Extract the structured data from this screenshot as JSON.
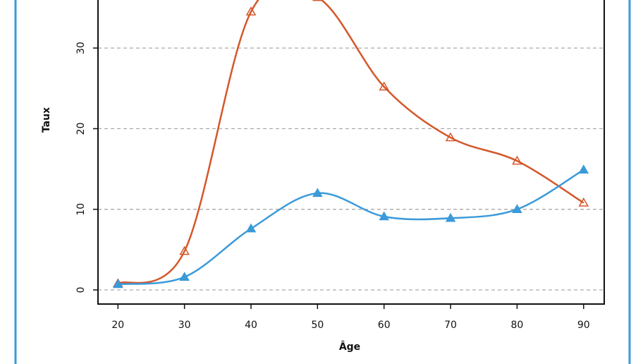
{
  "chart_data": {
    "type": "line",
    "x_label": "Âge",
    "y_label": "Taux",
    "x": [
      20,
      30,
      40,
      50,
      60,
      70,
      80,
      90
    ],
    "series": [
      {
        "color": "#d4572a",
        "marker": "hollow-triangle",
        "values": [
          0.8,
          4.8,
          34.5,
          36.3,
          25.2,
          18.9,
          16.0,
          10.8
        ]
      },
      {
        "color": "#3b9ad9",
        "marker": "filled-triangle",
        "values": [
          0.7,
          1.6,
          7.6,
          12.0,
          9.1,
          8.9,
          10.0,
          14.9
        ]
      }
    ],
    "xlim": [
      17,
      93.1
    ],
    "ylim": [
      -1.75,
      38
    ],
    "xticks": [
      20,
      30,
      40,
      50,
      60,
      70,
      80,
      90
    ],
    "yticks": [
      0,
      10,
      20,
      30
    ],
    "grid": true
  }
}
